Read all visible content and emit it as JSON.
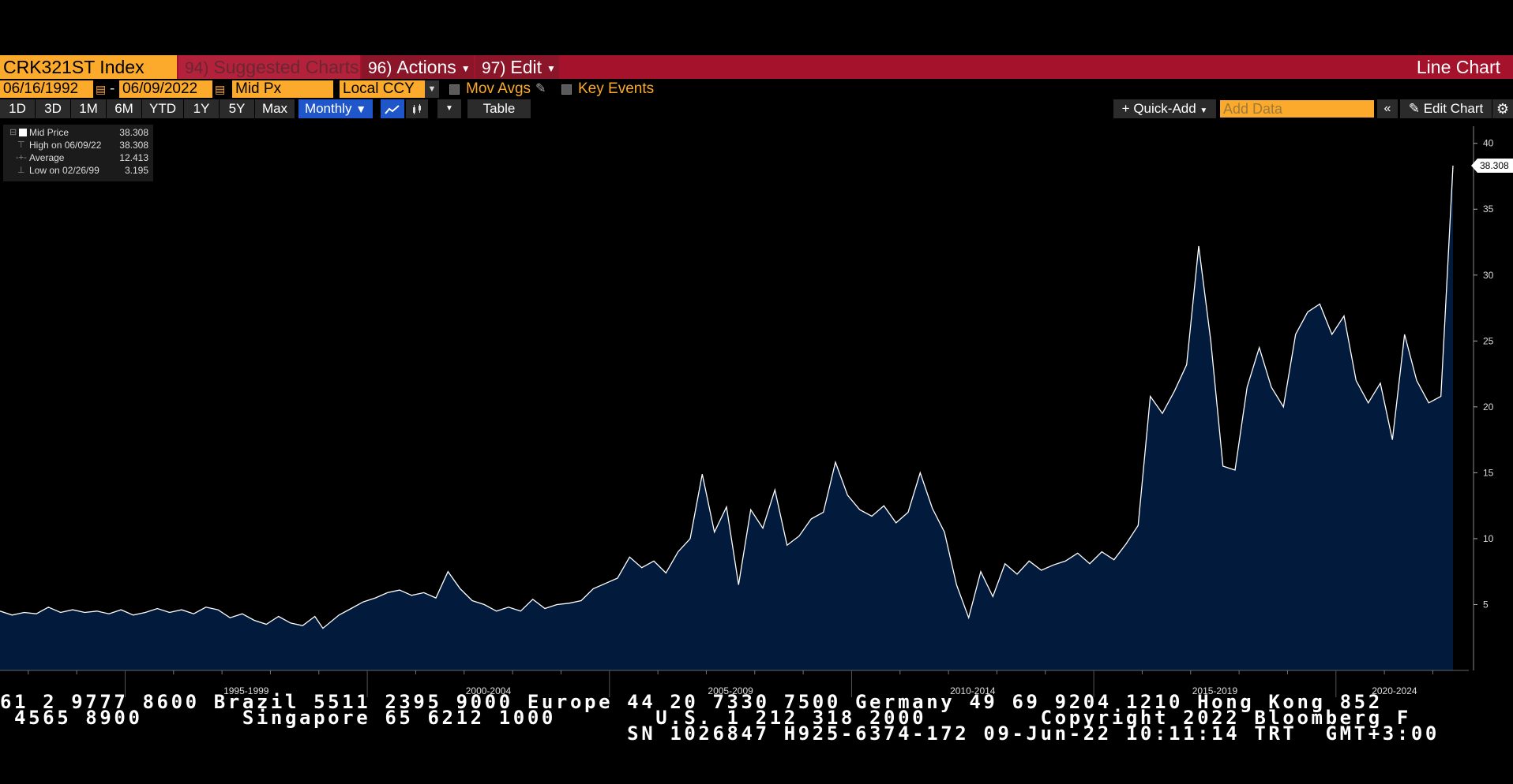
{
  "titlebar": {
    "ticker": "CRK321ST Index",
    "suggested_num": "94)",
    "suggested_label": "Suggested Charts",
    "actions_num": "96)",
    "actions_label": "Actions",
    "edit_num": "97)",
    "edit_label": "Edit",
    "view_title": "Line Chart"
  },
  "controls": {
    "start_date": "06/16/1992",
    "date_sep": "-",
    "end_date": "06/09/2022",
    "field": "Mid Px",
    "currency": "Local CCY",
    "mov_avgs": "Mov Avgs",
    "key_events": "Key Events"
  },
  "toolbar": {
    "periods": [
      "1D",
      "3D",
      "1M",
      "6M",
      "YTD",
      "1Y",
      "5Y",
      "Max"
    ],
    "frequency": "Monthly",
    "table_label": "Table",
    "quick_add": "+ Quick-Add",
    "add_data_placeholder": "Add Data",
    "edit_chart": "Edit Chart",
    "collapse_icon": "double-chevron-left-icon",
    "settings_icon": "gear-icon"
  },
  "legend": {
    "rows": [
      {
        "label": "Mid Price",
        "value": "38.308"
      },
      {
        "label": "High on 06/09/22",
        "value": "38.308"
      },
      {
        "label": "Average",
        "value": "12.413"
      },
      {
        "label": "Low on 02/26/99",
        "value": "3.195"
      }
    ]
  },
  "chart_data": {
    "type": "area",
    "title": "",
    "xlabel": "",
    "ylabel": "",
    "ylim": [
      0,
      41
    ],
    "yticks": [
      5,
      10,
      15,
      20,
      25,
      30,
      35,
      40
    ],
    "x_period_labels": [
      "1995-1999",
      "2000-2004",
      "2005-2009",
      "2010-2014",
      "2015-2019",
      "2020-2024"
    ],
    "x_range": [
      "1992-06",
      "2022-06"
    ],
    "last_value_label": "38.308",
    "series": [
      {
        "name": "Mid Price",
        "points": [
          [
            "1992-06",
            4.5
          ],
          [
            "1992-09",
            4.2
          ],
          [
            "1992-12",
            4.4
          ],
          [
            "1993-03",
            4.3
          ],
          [
            "1993-06",
            4.8
          ],
          [
            "1993-09",
            4.4
          ],
          [
            "1993-12",
            4.6
          ],
          [
            "1994-03",
            4.4
          ],
          [
            "1994-06",
            4.5
          ],
          [
            "1994-09",
            4.3
          ],
          [
            "1994-12",
            4.6
          ],
          [
            "1995-03",
            4.2
          ],
          [
            "1995-06",
            4.4
          ],
          [
            "1995-09",
            4.7
          ],
          [
            "1995-12",
            4.4
          ],
          [
            "1996-03",
            4.6
          ],
          [
            "1996-06",
            4.3
          ],
          [
            "1996-09",
            4.8
          ],
          [
            "1996-12",
            4.6
          ],
          [
            "1997-03",
            4.0
          ],
          [
            "1997-06",
            4.3
          ],
          [
            "1997-09",
            3.8
          ],
          [
            "1997-12",
            3.5
          ],
          [
            "1998-03",
            4.1
          ],
          [
            "1998-06",
            3.6
          ],
          [
            "1998-09",
            3.4
          ],
          [
            "1998-12",
            4.1
          ],
          [
            "1999-02",
            3.195
          ],
          [
            "1999-06",
            4.2
          ],
          [
            "1999-09",
            4.7
          ],
          [
            "1999-12",
            5.2
          ],
          [
            "2000-03",
            5.5
          ],
          [
            "2000-06",
            5.9
          ],
          [
            "2000-09",
            6.1
          ],
          [
            "2000-12",
            5.7
          ],
          [
            "2001-03",
            5.9
          ],
          [
            "2001-06",
            5.5
          ],
          [
            "2001-09",
            7.5
          ],
          [
            "2001-12",
            6.2
          ],
          [
            "2002-03",
            5.3
          ],
          [
            "2002-06",
            5.0
          ],
          [
            "2002-09",
            4.5
          ],
          [
            "2002-12",
            4.8
          ],
          [
            "2003-03",
            4.5
          ],
          [
            "2003-06",
            5.4
          ],
          [
            "2003-09",
            4.7
          ],
          [
            "2003-12",
            5.0
          ],
          [
            "2004-03",
            5.1
          ],
          [
            "2004-06",
            5.3
          ],
          [
            "2004-09",
            6.2
          ],
          [
            "2004-12",
            6.6
          ],
          [
            "2005-03",
            7.0
          ],
          [
            "2005-06",
            8.6
          ],
          [
            "2005-09",
            7.8
          ],
          [
            "2005-12",
            8.3
          ],
          [
            "2006-03",
            7.4
          ],
          [
            "2006-06",
            9.0
          ],
          [
            "2006-09",
            10.0
          ],
          [
            "2006-12",
            14.9
          ],
          [
            "2007-03",
            10.5
          ],
          [
            "2007-06",
            12.4
          ],
          [
            "2007-09",
            6.5
          ],
          [
            "2007-12",
            12.2
          ],
          [
            "2008-03",
            10.8
          ],
          [
            "2008-06",
            13.7
          ],
          [
            "2008-09",
            9.5
          ],
          [
            "2008-12",
            10.2
          ],
          [
            "2009-03",
            11.5
          ],
          [
            "2009-06",
            12.0
          ],
          [
            "2009-09",
            15.8
          ],
          [
            "2009-12",
            13.3
          ],
          [
            "2010-03",
            12.2
          ],
          [
            "2010-06",
            11.7
          ],
          [
            "2010-09",
            12.5
          ],
          [
            "2010-12",
            11.2
          ],
          [
            "2011-03",
            12.0
          ],
          [
            "2011-06",
            15.0
          ],
          [
            "2011-09",
            12.3
          ],
          [
            "2011-12",
            10.5
          ],
          [
            "2012-03",
            6.5
          ],
          [
            "2012-06",
            4.0
          ],
          [
            "2012-09",
            7.5
          ],
          [
            "2012-12",
            5.6
          ],
          [
            "2013-03",
            8.1
          ],
          [
            "2013-06",
            7.3
          ],
          [
            "2013-09",
            8.3
          ],
          [
            "2013-12",
            7.6
          ],
          [
            "2014-03",
            8.0
          ],
          [
            "2014-06",
            8.3
          ],
          [
            "2014-09",
            8.9
          ],
          [
            "2014-12",
            8.1
          ],
          [
            "2015-03",
            9.0
          ],
          [
            "2015-06",
            8.4
          ],
          [
            "2015-09",
            9.6
          ],
          [
            "2015-12",
            11.0
          ],
          [
            "2016-03",
            20.8
          ],
          [
            "2016-06",
            19.5
          ],
          [
            "2016-09",
            21.2
          ],
          [
            "2016-12",
            23.2
          ],
          [
            "2017-03",
            32.2
          ],
          [
            "2017-06",
            25.0
          ],
          [
            "2017-09",
            15.5
          ],
          [
            "2017-12",
            15.2
          ],
          [
            "2018-03",
            21.5
          ],
          [
            "2018-06",
            24.5
          ],
          [
            "2018-09",
            21.5
          ],
          [
            "2018-12",
            20.0
          ],
          [
            "2019-03",
            25.5
          ],
          [
            "2019-06",
            27.2
          ],
          [
            "2019-09",
            27.8
          ],
          [
            "2019-12",
            25.5
          ],
          [
            "2020-03",
            26.9
          ],
          [
            "2020-06",
            22.0
          ],
          [
            "2020-09",
            20.3
          ],
          [
            "2020-12",
            21.8
          ],
          [
            "2021-03",
            17.5
          ],
          [
            "2021-06",
            25.5
          ],
          [
            "2021-09",
            22.0
          ],
          [
            "2021-12",
            20.3
          ],
          [
            "2022-03",
            20.8
          ],
          [
            "2022-06",
            38.308
          ]
        ]
      }
    ]
  },
  "footer": {
    "line1": "61 2 9777 8600 Brazil 5511 2395 9000 Europe 44 20 7330 7500 Germany 49 69 9204 1210 Hong Kong 852",
    "line2": " 4565 8900       Singapore 65 6212 1000       U.S. 1 212 318 2000        Copyright 2022 Bloomberg F",
    "line3": "                                            SN 1026847 H925-6374-172 09-Jun-22 10:11:14 TRT  GMT+3:00"
  },
  "colors": {
    "accent_orange": "#fbaa2b",
    "title_red": "#a4122b",
    "area_fill": "#021a3c",
    "line": "#ffffff",
    "selected_blue": "#1f56c9"
  }
}
